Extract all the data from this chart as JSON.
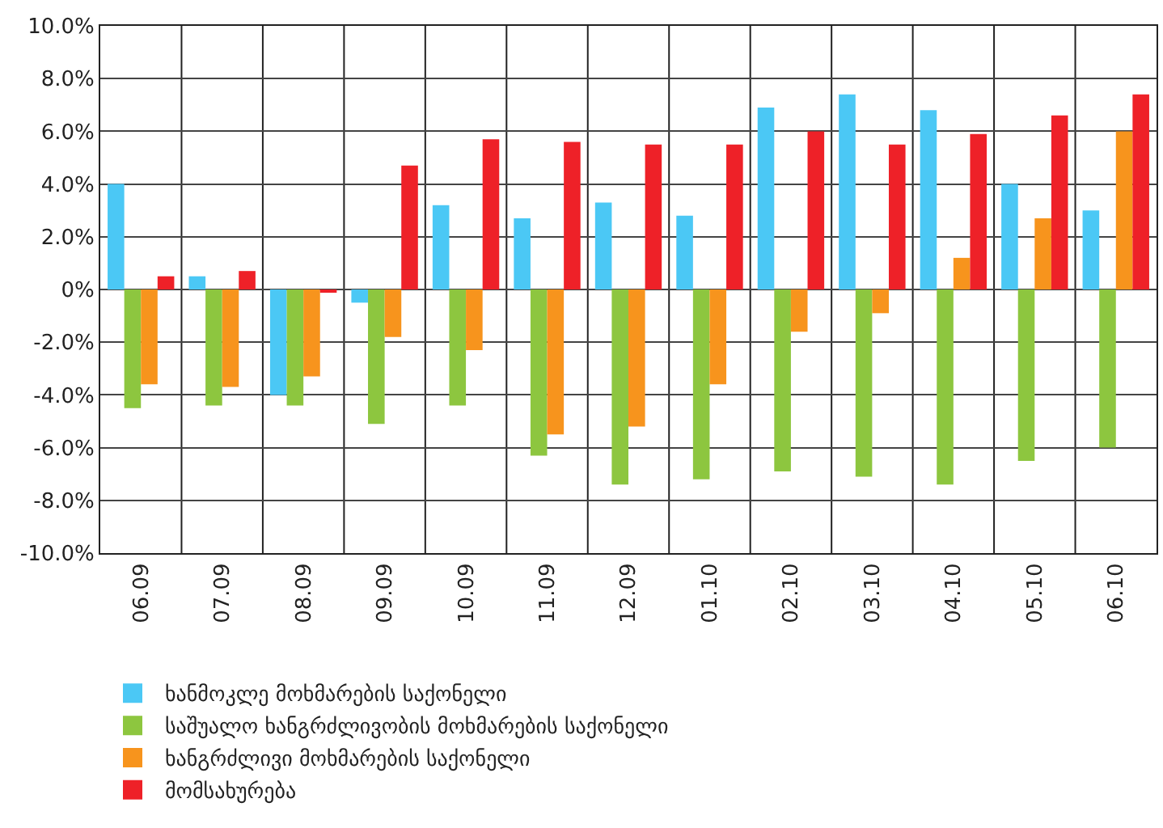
{
  "chart_data": {
    "type": "bar",
    "categories": [
      "06.09",
      "07.09",
      "08.09",
      "09.09",
      "10.09",
      "11.09",
      "12.09",
      "01.10",
      "02.10",
      "03.10",
      "04.10",
      "05.10",
      "06.10"
    ],
    "series": [
      {
        "name": "ხანმოკლე მოხმარების საქონელი",
        "color": "#4bc8f5",
        "values": [
          4.0,
          0.5,
          -4.0,
          -0.5,
          3.2,
          2.7,
          3.3,
          2.8,
          6.9,
          7.4,
          6.8,
          4.0,
          3.0
        ]
      },
      {
        "name": "საშუალო ხანგრძლივობის მოხმარების საქონელი",
        "color": "#8dc63f",
        "values": [
          -4.5,
          -4.4,
          -4.4,
          -5.1,
          -4.4,
          -6.3,
          -7.4,
          -7.2,
          -6.9,
          -7.1,
          -7.4,
          -6.5,
          -6.0
        ]
      },
      {
        "name": "ხანგრძლივი მოხმარების საქონელი",
        "color": "#f7941d",
        "values": [
          -3.6,
          -3.7,
          -3.3,
          -1.8,
          -2.3,
          -5.5,
          -5.2,
          -3.6,
          -1.6,
          -0.9,
          1.2,
          2.7,
          6.0
        ]
      },
      {
        "name": "მომსახურება",
        "color": "#ee2128",
        "values": [
          0.5,
          0.7,
          -0.1,
          4.7,
          5.7,
          5.6,
          5.5,
          5.5,
          6.0,
          5.5,
          5.9,
          6.6,
          7.4
        ]
      }
    ],
    "ylim": [
      -10,
      10
    ],
    "yticks": [
      {
        "value": -10,
        "label": "-10.0%"
      },
      {
        "value": -8,
        "label": "-8.0%"
      },
      {
        "value": -6,
        "label": "-6.0%"
      },
      {
        "value": -4,
        "label": "-4.0%"
      },
      {
        "value": -2,
        "label": "-2.0%"
      },
      {
        "value": 0,
        "label": "0%"
      },
      {
        "value": 2,
        "label": "2.0%"
      },
      {
        "value": 4,
        "label": "4.0%"
      },
      {
        "value": 6,
        "label": "6.0%"
      },
      {
        "value": 8,
        "label": "8.0%"
      },
      {
        "value": 10,
        "label": "10.0%"
      }
    ],
    "grid": true,
    "legend": "bottom"
  }
}
